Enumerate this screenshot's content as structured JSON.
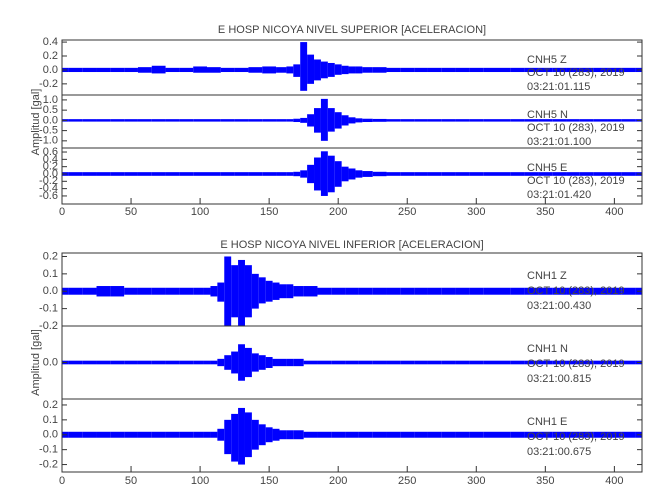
{
  "chart_data": [
    {
      "type": "seismogram",
      "title": "E HOSP NICOYA NIVEL SUPERIOR [ACELERACION]",
      "y_label": "Amplitud [gal]",
      "x": [
        0,
        10,
        20,
        30,
        40,
        50,
        60,
        70,
        80,
        90,
        100,
        110,
        120,
        130,
        140,
        150,
        160,
        165,
        170,
        175,
        180,
        185,
        190,
        195,
        200,
        205,
        210,
        215,
        220,
        230,
        240,
        250,
        260,
        270,
        280,
        290,
        300,
        310,
        320,
        330,
        340,
        350,
        360,
        370,
        380,
        390,
        400,
        410,
        420
      ],
      "xlim": [
        0,
        420
      ],
      "xticks": [
        0,
        50,
        100,
        150,
        200,
        250,
        300,
        350,
        400
      ],
      "series": [
        {
          "name": "CNH5  Z",
          "date": "OCT 10 (283), 2019",
          "time": "03:21:01.115",
          "color": "#0000ff",
          "ylim": [
            -0.36,
            0.43
          ],
          "yticks": [
            0.4,
            0.2,
            {
              "value": 0,
              "label": "0.0"
            },
            -0.2
          ],
          "max": [
            0.03,
            0.03,
            0.03,
            0.03,
            0.03,
            0.03,
            0.04,
            0.06,
            0.03,
            0.03,
            0.05,
            0.04,
            0.03,
            0.03,
            0.04,
            0.05,
            0.04,
            0.05,
            0.08,
            0.4,
            0.22,
            0.15,
            0.12,
            0.1,
            0.08,
            0.06,
            0.05,
            0.05,
            0.04,
            0.04,
            0.03,
            0.03,
            0.03,
            0.03,
            0.03,
            0.03,
            0.03,
            0.03,
            0.03,
            0.03,
            0.03,
            0.03,
            0.03,
            0.03,
            0.03,
            0.03,
            0.03,
            0.03,
            0.03
          ],
          "min": [
            -0.03,
            -0.03,
            -0.03,
            -0.03,
            -0.03,
            -0.03,
            -0.04,
            -0.05,
            -0.03,
            -0.03,
            -0.04,
            -0.04,
            -0.03,
            -0.03,
            -0.04,
            -0.05,
            -0.04,
            -0.05,
            -0.1,
            -0.3,
            -0.2,
            -0.15,
            -0.12,
            -0.1,
            -0.07,
            -0.06,
            -0.05,
            -0.05,
            -0.04,
            -0.04,
            -0.03,
            -0.03,
            -0.03,
            -0.03,
            -0.03,
            -0.03,
            -0.03,
            -0.03,
            -0.03,
            -0.03,
            -0.03,
            -0.03,
            -0.03,
            -0.03,
            -0.03,
            -0.03,
            -0.03,
            -0.03,
            -0.03
          ]
        },
        {
          "name": "CNH5  N",
          "date": "OCT 10 (283), 2019",
          "time": "03:21:01.100",
          "color": "#0000ff",
          "ylim": [
            -1.35,
            1.24
          ],
          "yticks": [
            {
              "value": 1,
              "label": "1.0"
            },
            0.5,
            {
              "value": 0,
              "label": "0.0"
            },
            -0.5,
            {
              "value": -1,
              "label": "-1.0"
            }
          ],
          "max": [
            0.06,
            0.06,
            0.06,
            0.06,
            0.06,
            0.06,
            0.06,
            0.06,
            0.06,
            0.06,
            0.06,
            0.06,
            0.06,
            0.06,
            0.06,
            0.06,
            0.06,
            0.06,
            0.08,
            0.12,
            0.3,
            0.6,
            1.05,
            0.6,
            0.4,
            0.25,
            0.15,
            0.1,
            0.08,
            0.07,
            0.06,
            0.06,
            0.06,
            0.06,
            0.06,
            0.06,
            0.06,
            0.06,
            0.06,
            0.06,
            0.06,
            0.06,
            0.06,
            0.06,
            0.06,
            0.06,
            0.06,
            0.06,
            0.06
          ],
          "min": [
            -0.06,
            -0.06,
            -0.06,
            -0.06,
            -0.06,
            -0.06,
            -0.06,
            -0.06,
            -0.06,
            -0.06,
            -0.06,
            -0.06,
            -0.06,
            -0.06,
            -0.06,
            -0.06,
            -0.06,
            -0.06,
            -0.08,
            -0.12,
            -0.3,
            -0.6,
            -1.0,
            -0.55,
            -0.4,
            -0.25,
            -0.15,
            -0.1,
            -0.08,
            -0.07,
            -0.06,
            -0.06,
            -0.06,
            -0.06,
            -0.06,
            -0.06,
            -0.06,
            -0.06,
            -0.06,
            -0.06,
            -0.06,
            -0.06,
            -0.06,
            -0.06,
            -0.06,
            -0.06,
            -0.06,
            -0.06,
            -0.06
          ]
        },
        {
          "name": "CNH5  E",
          "date": "OCT 10 (283), 2019",
          "time": "03:21:01.420",
          "color": "#0000ff",
          "ylim": [
            -0.82,
            0.71
          ],
          "yticks": [
            0.6,
            0.4,
            0.2,
            {
              "value": 0,
              "label": "0.0"
            },
            -0.2,
            -0.4,
            -0.6
          ],
          "max": [
            0.05,
            0.05,
            0.05,
            0.05,
            0.05,
            0.05,
            0.05,
            0.05,
            0.05,
            0.05,
            0.05,
            0.05,
            0.05,
            0.05,
            0.05,
            0.05,
            0.05,
            0.05,
            0.06,
            0.1,
            0.25,
            0.45,
            0.62,
            0.5,
            0.35,
            0.2,
            0.15,
            0.1,
            0.08,
            0.06,
            0.05,
            0.05,
            0.05,
            0.05,
            0.05,
            0.05,
            0.05,
            0.05,
            0.05,
            0.05,
            0.05,
            0.05,
            0.05,
            0.05,
            0.05,
            0.05,
            0.05,
            0.05,
            0.05
          ],
          "min": [
            -0.05,
            -0.05,
            -0.05,
            -0.05,
            -0.05,
            -0.05,
            -0.05,
            -0.05,
            -0.05,
            -0.05,
            -0.05,
            -0.05,
            -0.05,
            -0.05,
            -0.05,
            -0.05,
            -0.05,
            -0.05,
            -0.06,
            -0.1,
            -0.25,
            -0.45,
            -0.6,
            -0.5,
            -0.35,
            -0.2,
            -0.15,
            -0.1,
            -0.08,
            -0.06,
            -0.05,
            -0.05,
            -0.05,
            -0.05,
            -0.05,
            -0.05,
            -0.05,
            -0.05,
            -0.05,
            -0.05,
            -0.05,
            -0.05,
            -0.05,
            -0.05,
            -0.05,
            -0.05,
            -0.05,
            -0.05,
            -0.05
          ]
        }
      ]
    },
    {
      "type": "seismogram",
      "title": "E HOSP NICOYA NIVEL INFERIOR [ACELERACION]",
      "y_label": "Amplitud [gal]",
      "x": [
        0,
        10,
        20,
        30,
        40,
        50,
        60,
        70,
        80,
        90,
        100,
        105,
        110,
        115,
        120,
        125,
        130,
        135,
        140,
        145,
        150,
        155,
        160,
        165,
        170,
        180,
        190,
        200,
        210,
        220,
        230,
        240,
        250,
        260,
        270,
        280,
        290,
        300,
        310,
        320,
        330,
        340,
        350,
        360,
        370,
        380,
        390,
        400,
        410,
        420
      ],
      "xlim": [
        0,
        420
      ],
      "xticks": [
        0,
        50,
        100,
        150,
        200,
        250,
        300,
        350,
        400
      ],
      "series": [
        {
          "name": "CNH1  Z",
          "date": "OCT 10 (283), 2019",
          "time": "03:21:00.430",
          "color": "#0000ff",
          "ylim": [
            -0.2,
            0.22
          ],
          "yticks": [
            0.2,
            0.1,
            {
              "value": 0,
              "label": "0.0"
            },
            -0.1,
            -0.2
          ],
          "max": [
            0.02,
            0.02,
            0.02,
            0.03,
            0.03,
            0.02,
            0.02,
            0.02,
            0.02,
            0.02,
            0.02,
            0.02,
            0.03,
            0.05,
            0.2,
            0.15,
            0.18,
            0.15,
            0.1,
            0.08,
            0.06,
            0.05,
            0.04,
            0.04,
            0.03,
            0.03,
            0.02,
            0.02,
            0.02,
            0.02,
            0.02,
            0.02,
            0.02,
            0.02,
            0.02,
            0.02,
            0.02,
            0.02,
            0.02,
            0.02,
            0.02,
            0.02,
            0.02,
            0.02,
            0.02,
            0.02,
            0.02,
            0.02,
            0.02,
            0.02
          ],
          "min": [
            -0.02,
            -0.02,
            -0.02,
            -0.03,
            -0.03,
            -0.02,
            -0.02,
            -0.02,
            -0.02,
            -0.02,
            -0.02,
            -0.02,
            -0.03,
            -0.06,
            -0.2,
            -0.15,
            -0.2,
            -0.15,
            -0.1,
            -0.07,
            -0.06,
            -0.05,
            -0.04,
            -0.04,
            -0.03,
            -0.03,
            -0.02,
            -0.02,
            -0.02,
            -0.02,
            -0.02,
            -0.02,
            -0.02,
            -0.02,
            -0.02,
            -0.02,
            -0.02,
            -0.02,
            -0.02,
            -0.02,
            -0.02,
            -0.02,
            -0.02,
            -0.02,
            -0.02,
            -0.02,
            -0.02,
            -0.02,
            -0.02,
            -0.02
          ]
        },
        {
          "name": "CNH1  N",
          "date": "OCT 10 (283), 2019",
          "time": "03:21:00.815",
          "color": "#0000ff",
          "ylim": [
            -0.2,
            0.2
          ],
          "yticks": [
            {
              "value": 0,
              "label": "0.0"
            }
          ],
          "max": [
            0.01,
            0.01,
            0.01,
            0.01,
            0.01,
            0.01,
            0.01,
            0.01,
            0.01,
            0.01,
            0.01,
            0.01,
            0.01,
            0.02,
            0.04,
            0.06,
            0.1,
            0.08,
            0.05,
            0.04,
            0.03,
            0.02,
            0.02,
            0.02,
            0.02,
            0.01,
            0.01,
            0.01,
            0.01,
            0.01,
            0.01,
            0.01,
            0.01,
            0.01,
            0.01,
            0.01,
            0.01,
            0.01,
            0.01,
            0.01,
            0.01,
            0.01,
            0.01,
            0.01,
            0.01,
            0.01,
            0.01,
            0.01,
            0.01,
            0.01
          ],
          "min": [
            -0.01,
            -0.01,
            -0.01,
            -0.01,
            -0.01,
            -0.01,
            -0.01,
            -0.01,
            -0.01,
            -0.01,
            -0.01,
            -0.01,
            -0.01,
            -0.02,
            -0.04,
            -0.06,
            -0.1,
            -0.08,
            -0.05,
            -0.04,
            -0.03,
            -0.02,
            -0.02,
            -0.02,
            -0.02,
            -0.01,
            -0.01,
            -0.01,
            -0.01,
            -0.01,
            -0.01,
            -0.01,
            -0.01,
            -0.01,
            -0.01,
            -0.01,
            -0.01,
            -0.01,
            -0.01,
            -0.01,
            -0.01,
            -0.01,
            -0.01,
            -0.01,
            -0.01,
            -0.01,
            -0.01,
            -0.01,
            -0.01,
            -0.01
          ]
        },
        {
          "name": "CNH1  E",
          "date": "OCT 10 (283), 2019",
          "time": "03:21:00.675",
          "color": "#0000ff",
          "ylim": [
            -0.25,
            0.24
          ],
          "yticks": [
            0.2,
            0.1,
            {
              "value": 0,
              "label": "0.0"
            },
            -0.1,
            -0.2
          ],
          "max": [
            0.02,
            0.02,
            0.02,
            0.02,
            0.02,
            0.02,
            0.02,
            0.02,
            0.02,
            0.02,
            0.02,
            0.02,
            0.02,
            0.04,
            0.1,
            0.14,
            0.18,
            0.15,
            0.1,
            0.07,
            0.05,
            0.04,
            0.03,
            0.03,
            0.03,
            0.02,
            0.02,
            0.02,
            0.02,
            0.02,
            0.02,
            0.02,
            0.02,
            0.02,
            0.02,
            0.02,
            0.02,
            0.02,
            0.02,
            0.02,
            0.02,
            0.02,
            0.02,
            0.02,
            0.02,
            0.02,
            0.02,
            0.02,
            0.02,
            0.02
          ],
          "min": [
            -0.02,
            -0.02,
            -0.02,
            -0.02,
            -0.02,
            -0.02,
            -0.02,
            -0.02,
            -0.02,
            -0.02,
            -0.02,
            -0.02,
            -0.02,
            -0.04,
            -0.13,
            -0.18,
            -0.2,
            -0.15,
            -0.1,
            -0.07,
            -0.05,
            -0.04,
            -0.03,
            -0.03,
            -0.03,
            -0.02,
            -0.02,
            -0.02,
            -0.02,
            -0.02,
            -0.02,
            -0.02,
            -0.02,
            -0.02,
            -0.02,
            -0.02,
            -0.02,
            -0.02,
            -0.02,
            -0.02,
            -0.02,
            -0.02,
            -0.02,
            -0.02,
            -0.02,
            -0.02,
            -0.02,
            -0.02,
            -0.02,
            -0.02
          ]
        }
      ]
    }
  ]
}
